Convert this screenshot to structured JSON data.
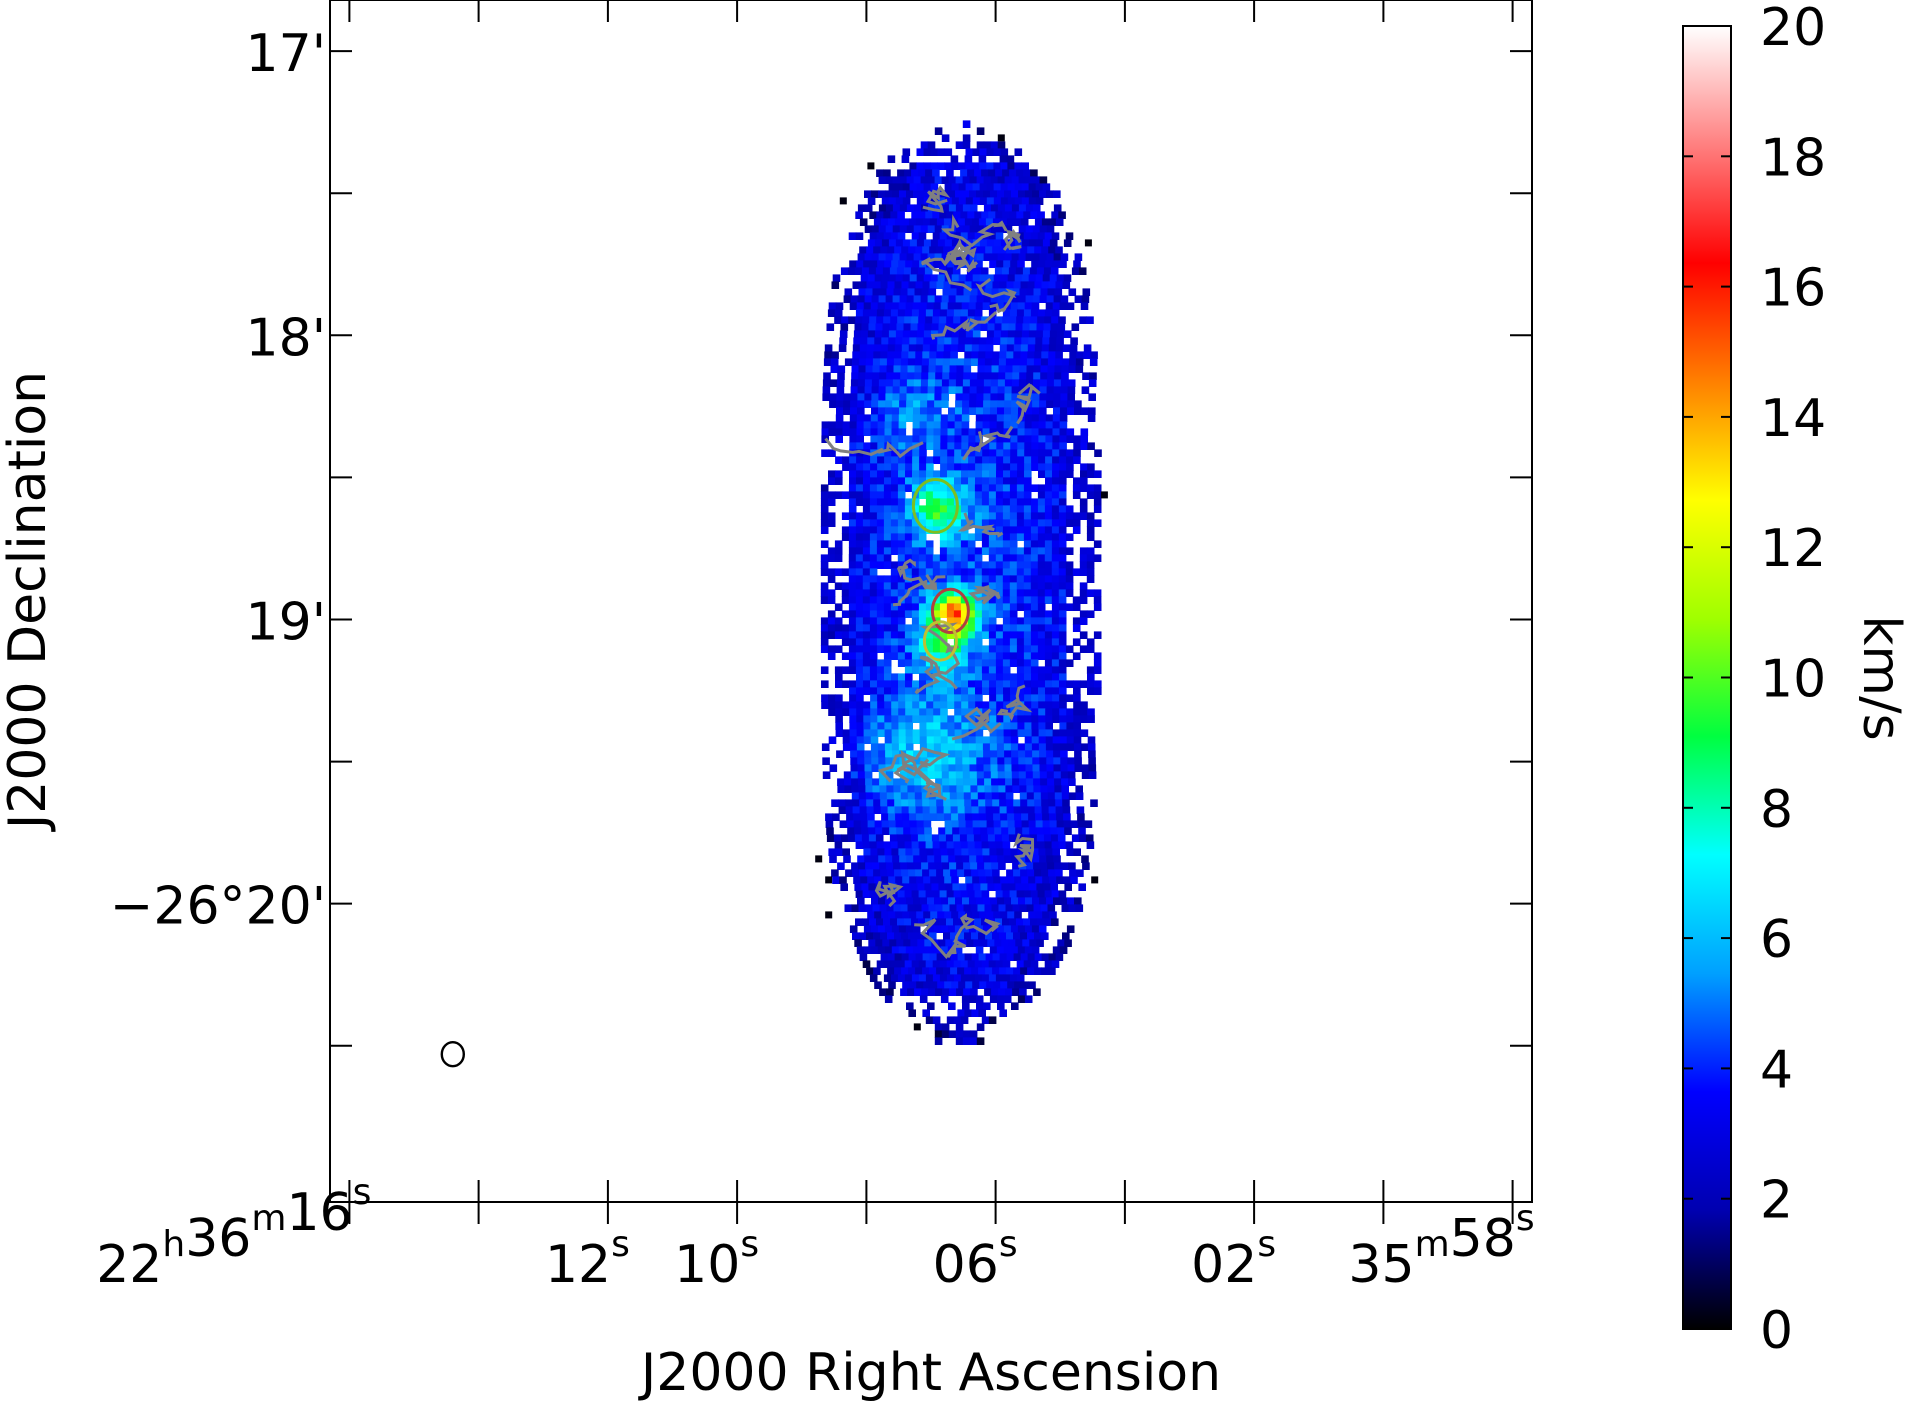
{
  "chart_data": {
    "type": "heatmap",
    "title": "",
    "xlabel": "J2000 Right Ascension",
    "ylabel": "J2000 Declination",
    "x_ticks": [
      {
        "label": "22h36m16s",
        "h": "22",
        "m": "36",
        "s": "16",
        "sec": 16
      },
      {
        "label": "12s",
        "s": "12",
        "sec": 12
      },
      {
        "label": "10s",
        "s": "10",
        "sec": 10
      },
      {
        "label": "06s",
        "s": "06",
        "sec": 6
      },
      {
        "label": "02s",
        "s": "02",
        "sec": 2
      },
      {
        "label": "35m58s",
        "m": "35",
        "s": "58",
        "sec": -2
      }
    ],
    "x_minor_sec": [
      14,
      8,
      4,
      0
    ],
    "xlim_sec": [
      16.3,
      -2.3
    ],
    "y_ticks": [
      {
        "label": "17'",
        "arcmin": -17
      },
      {
        "label": "18'",
        "arcmin": -18
      },
      {
        "label": "19'",
        "arcmin": -19
      },
      {
        "label": "−26°20'",
        "arcmin": -20
      }
    ],
    "y_minor_arcmin": [
      -17.5,
      -18.5,
      -19.5,
      -20.5
    ],
    "ylim_arcmin": [
      -21.05,
      -16.82
    ],
    "colorbar": {
      "label": "km/s",
      "min": 0,
      "max": 20,
      "ticks": [
        0,
        2,
        4,
        6,
        8,
        10,
        12,
        14,
        16,
        18,
        20
      ],
      "colormap": [
        "#000000",
        "#0000b0",
        "#0000ff",
        "#00a0ff",
        "#00ffff",
        "#00ff40",
        "#a0ff00",
        "#ffff00",
        "#ff8000",
        "#ff0000",
        "#ff8080",
        "#ffffff"
      ]
    },
    "source": {
      "center_ra_sec": 6.6,
      "center_dec_arcmin": -18.98,
      "extent_dec_arcmin": [
        -20.4,
        -17.3
      ],
      "peak_value_kms": 17.5,
      "peak_ra_sec": 6.7,
      "peak_dec_arcmin": -18.97,
      "contour_color": "#808080"
    },
    "beam": {
      "ra_sec": 14.4,
      "dec_arcmin": -20.53
    }
  }
}
